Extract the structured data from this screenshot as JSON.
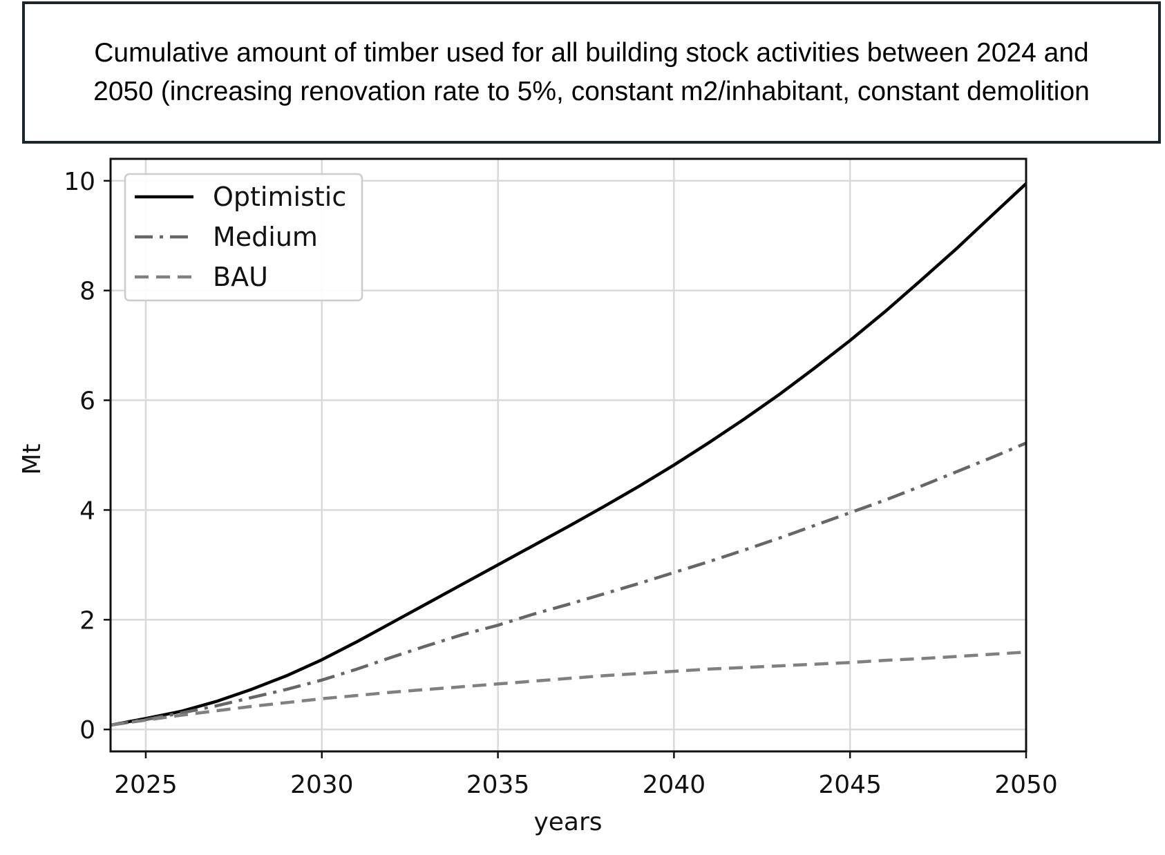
{
  "header": {
    "title": "Cumulative amount of timber used for all building stock activities between 2024 and\n2050 (increasing renovation rate to 5%, constant m2/inhabitant, constant demolition"
  },
  "chart_data": {
    "type": "line",
    "xlabel": "years",
    "ylabel": "Mt",
    "xlim": [
      2024,
      2050
    ],
    "ylim": [
      -0.4,
      10.4
    ],
    "xticks": [
      2025,
      2030,
      2035,
      2040,
      2045,
      2050
    ],
    "yticks": [
      0,
      2,
      4,
      6,
      8,
      10
    ],
    "grid": true,
    "legend_position": "top-left",
    "x": [
      2024,
      2025,
      2026,
      2027,
      2028,
      2029,
      2030,
      2031,
      2032,
      2033,
      2034,
      2035,
      2036,
      2037,
      2038,
      2039,
      2040,
      2041,
      2042,
      2043,
      2044,
      2045,
      2046,
      2047,
      2048,
      2049,
      2050
    ],
    "series": [
      {
        "name": "Optimistic",
        "color": "#000000",
        "dash": "solid",
        "values": [
          0.08,
          0.2,
          0.33,
          0.51,
          0.73,
          0.98,
          1.27,
          1.6,
          1.95,
          2.3,
          2.65,
          3.0,
          3.35,
          3.7,
          4.06,
          4.43,
          4.82,
          5.23,
          5.66,
          6.11,
          6.59,
          7.09,
          7.62,
          8.18,
          8.75,
          9.35,
          9.95
        ]
      },
      {
        "name": "Medium",
        "color": "#666666",
        "dash": "dashdot",
        "values": [
          0.08,
          0.18,
          0.3,
          0.43,
          0.58,
          0.73,
          0.9,
          1.1,
          1.32,
          1.53,
          1.73,
          1.9,
          2.1,
          2.28,
          2.47,
          2.66,
          2.86,
          3.06,
          3.27,
          3.49,
          3.72,
          3.95,
          4.18,
          4.43,
          4.69,
          4.95,
          5.22
        ]
      },
      {
        "name": "BAU",
        "color": "#808080",
        "dash": "dashed",
        "values": [
          0.08,
          0.17,
          0.26,
          0.34,
          0.42,
          0.49,
          0.56,
          0.62,
          0.68,
          0.73,
          0.78,
          0.83,
          0.88,
          0.93,
          0.98,
          1.02,
          1.06,
          1.1,
          1.13,
          1.16,
          1.19,
          1.22,
          1.26,
          1.29,
          1.33,
          1.37,
          1.41
        ]
      }
    ]
  }
}
